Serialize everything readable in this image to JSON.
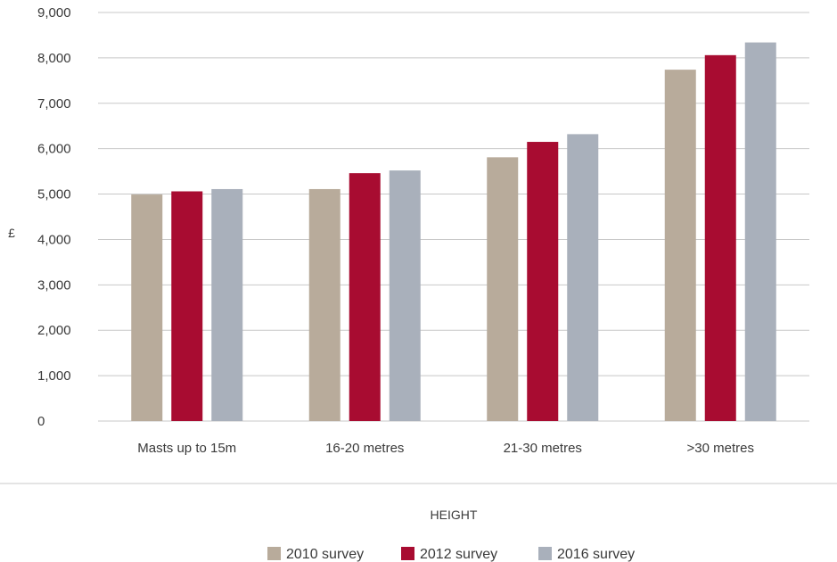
{
  "chart_data": {
    "type": "bar",
    "title": "",
    "xlabel": "HEIGHT",
    "ylabel": "£",
    "categories": [
      "Masts up to 15m",
      "16-20 metres",
      "21-30 metres",
      ">30 metres"
    ],
    "series": [
      {
        "name": "2010 survey",
        "color": "#b8ab9b",
        "values": [
          4990,
          5110,
          5810,
          7740
        ]
      },
      {
        "name": "2012 survey",
        "color": "#a80c31",
        "values": [
          5060,
          5460,
          6150,
          8060
        ]
      },
      {
        "name": "2016 survey",
        "color": "#a9b0bb",
        "values": [
          5110,
          5520,
          6320,
          8340
        ]
      }
    ],
    "ylim": [
      0,
      9000
    ],
    "yticks": [
      0,
      1000,
      2000,
      3000,
      4000,
      5000,
      6000,
      7000,
      8000,
      9000
    ],
    "ytick_labels": [
      "0",
      "1,000",
      "2,000",
      "3,000",
      "4,000",
      "5,000",
      "6,000",
      "7,000",
      "8,000",
      "9,000"
    ],
    "grid": true,
    "legend_position": "bottom-center",
    "gridline_color": "#c8c8c8"
  }
}
